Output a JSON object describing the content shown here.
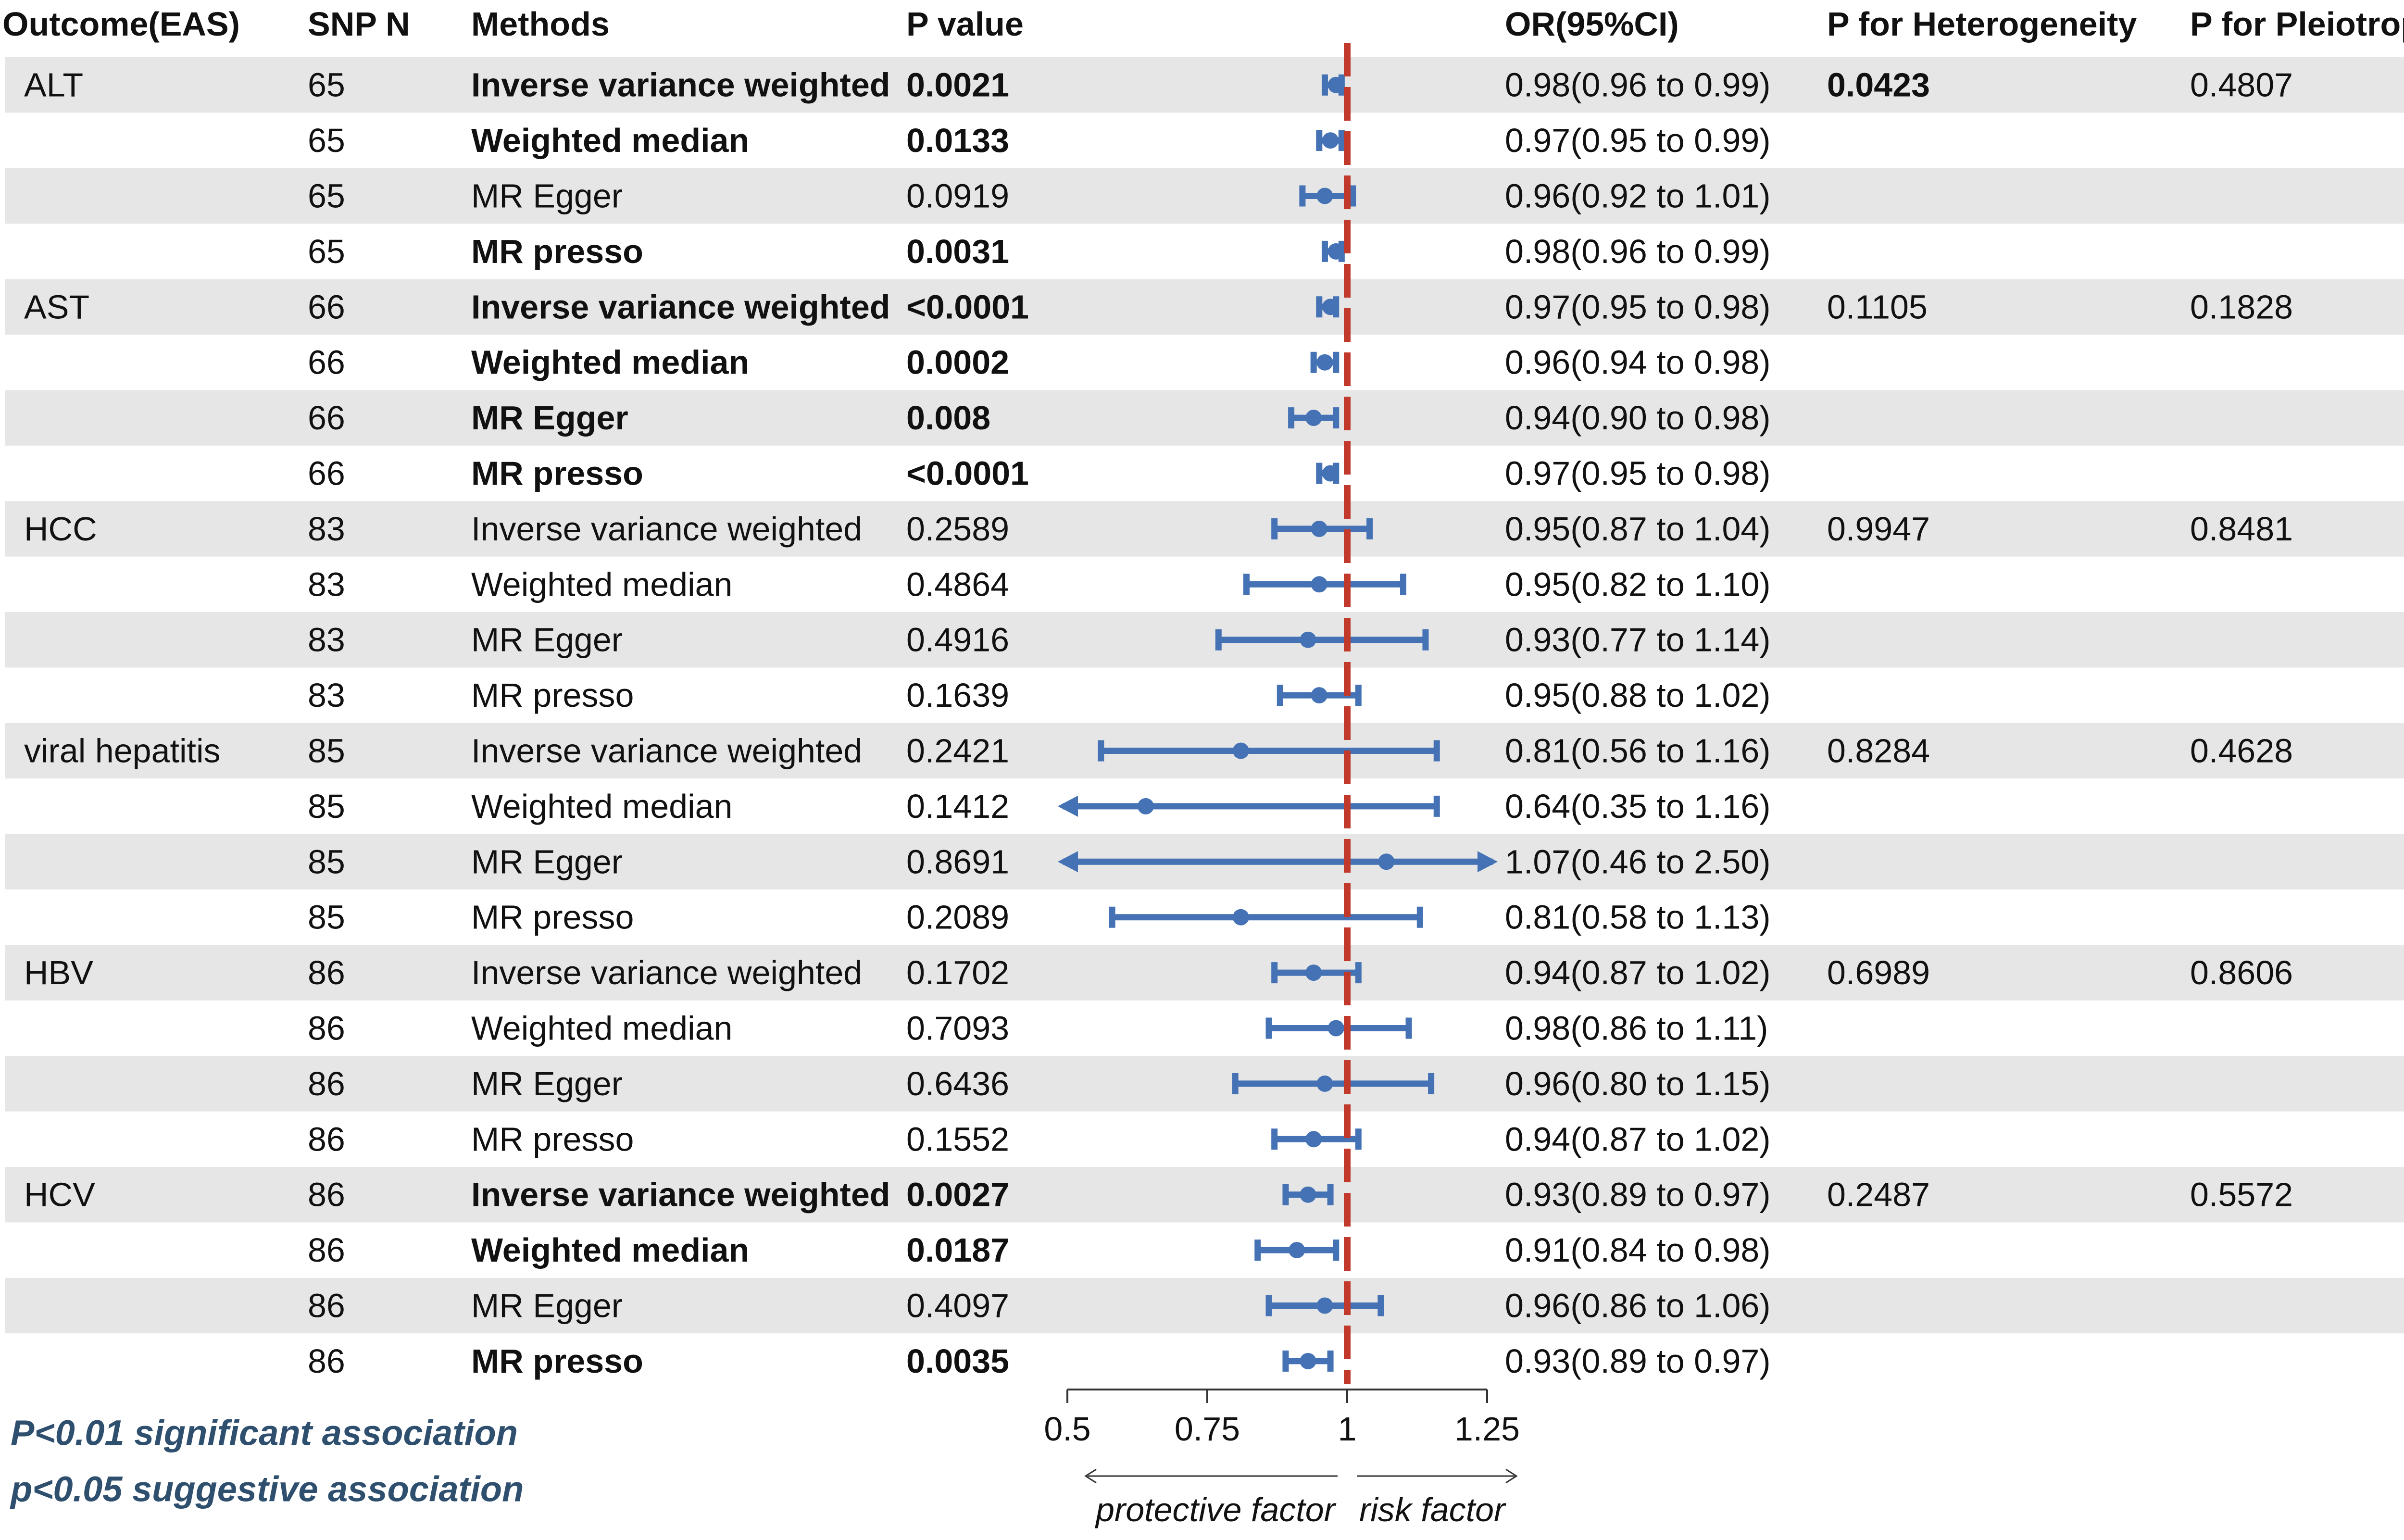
{
  "headers": {
    "outcome": "Outcome(EAS)",
    "snp": "SNP N",
    "methods": "Methods",
    "pvalue": "P value",
    "or": "OR(95%CI)",
    "het": "P for Heterogeneity",
    "pleio": "P for Pleiotropy"
  },
  "colors": {
    "band": "#e6e6e6",
    "marker": "#4472b4",
    "null_line": "#c0392b",
    "note": "#2f4f6f"
  },
  "rows": [
    {
      "outcome": "ALT",
      "snp": "65",
      "method": "Inverse variance weighted",
      "p": "0.0021",
      "or_text": "0.98(0.96 to 0.99)",
      "het": "0.0423",
      "pleio": "0.4807",
      "bold": true,
      "het_bold": true
    },
    {
      "outcome": "",
      "snp": "65",
      "method": "Weighted median",
      "p": "0.0133",
      "or_text": "0.97(0.95 to 0.99)",
      "het": "",
      "pleio": "",
      "bold": true
    },
    {
      "outcome": "",
      "snp": "65",
      "method": "MR Egger",
      "p": "0.0919",
      "or_text": "0.96(0.92 to 1.01)",
      "het": "",
      "pleio": "",
      "bold": false
    },
    {
      "outcome": "",
      "snp": "65",
      "method": "MR presso",
      "p": "0.0031",
      "or_text": "0.98(0.96 to 0.99)",
      "het": "",
      "pleio": "",
      "bold": true
    },
    {
      "outcome": "AST",
      "snp": "66",
      "method": "Inverse variance weighted",
      "p": "<0.0001",
      "or_text": "0.97(0.95 to 0.98)",
      "het": "0.1105",
      "pleio": "0.1828",
      "bold": true
    },
    {
      "outcome": "",
      "snp": "66",
      "method": "Weighted median",
      "p": "0.0002",
      "or_text": "0.96(0.94 to 0.98)",
      "het": "",
      "pleio": "",
      "bold": true
    },
    {
      "outcome": "",
      "snp": "66",
      "method": "MR Egger",
      "p": "0.008",
      "or_text": "0.94(0.90 to 0.98)",
      "het": "",
      "pleio": "",
      "bold": true
    },
    {
      "outcome": "",
      "snp": "66",
      "method": "MR presso",
      "p": "<0.0001",
      "or_text": "0.97(0.95 to 0.98)",
      "het": "",
      "pleio": "",
      "bold": true
    },
    {
      "outcome": "HCC",
      "snp": "83",
      "method": "Inverse variance weighted",
      "p": "0.2589",
      "or_text": "0.95(0.87 to 1.04)",
      "het": "0.9947",
      "pleio": "0.8481",
      "bold": false
    },
    {
      "outcome": "",
      "snp": "83",
      "method": "Weighted median",
      "p": "0.4864",
      "or_text": "0.95(0.82 to 1.10)",
      "het": "",
      "pleio": "",
      "bold": false
    },
    {
      "outcome": "",
      "snp": "83",
      "method": "MR Egger",
      "p": "0.4916",
      "or_text": "0.93(0.77 to 1.14)",
      "het": "",
      "pleio": "",
      "bold": false
    },
    {
      "outcome": "",
      "snp": "83",
      "method": "MR presso",
      "p": "0.1639",
      "or_text": "0.95(0.88 to 1.02)",
      "het": "",
      "pleio": "",
      "bold": false
    },
    {
      "outcome": "viral hepatitis",
      "snp": "85",
      "method": "Inverse variance weighted",
      "p": "0.2421",
      "or_text": "0.81(0.56 to 1.16)",
      "het": "0.8284",
      "pleio": "0.4628",
      "bold": false
    },
    {
      "outcome": "",
      "snp": "85",
      "method": "Weighted median",
      "p": "0.1412",
      "or_text": "0.64(0.35 to 1.16)",
      "het": "",
      "pleio": "",
      "bold": false
    },
    {
      "outcome": "",
      "snp": "85",
      "method": "MR Egger",
      "p": "0.8691",
      "or_text": "1.07(0.46 to 2.50)",
      "het": "",
      "pleio": "",
      "bold": false
    },
    {
      "outcome": "",
      "snp": "85",
      "method": "MR presso",
      "p": "0.2089",
      "or_text": "0.81(0.58 to 1.13)",
      "het": "",
      "pleio": "",
      "bold": false
    },
    {
      "outcome": "HBV",
      "snp": "86",
      "method": "Inverse variance weighted",
      "p": "0.1702",
      "or_text": "0.94(0.87 to 1.02)",
      "het": "0.6989",
      "pleio": "0.8606",
      "bold": false
    },
    {
      "outcome": "",
      "snp": "86",
      "method": "Weighted median",
      "p": "0.7093",
      "or_text": "0.98(0.86 to 1.11)",
      "het": "",
      "pleio": "",
      "bold": false
    },
    {
      "outcome": "",
      "snp": "86",
      "method": "MR Egger",
      "p": "0.6436",
      "or_text": "0.96(0.80 to 1.15)",
      "het": "",
      "pleio": "",
      "bold": false
    },
    {
      "outcome": "",
      "snp": "86",
      "method": "MR presso",
      "p": "0.1552",
      "or_text": "0.94(0.87 to 1.02)",
      "het": "",
      "pleio": "",
      "bold": false
    },
    {
      "outcome": "HCV",
      "snp": "86",
      "method": "Inverse variance weighted",
      "p": "0.0027",
      "or_text": "0.93(0.89 to 0.97)",
      "het": "0.2487",
      "pleio": "0.5572",
      "bold": true
    },
    {
      "outcome": "",
      "snp": "86",
      "method": "Weighted median",
      "p": "0.0187",
      "or_text": "0.91(0.84 to 0.98)",
      "het": "",
      "pleio": "",
      "bold": true
    },
    {
      "outcome": "",
      "snp": "86",
      "method": "MR Egger",
      "p": "0.4097",
      "or_text": "0.96(0.86 to 1.06)",
      "het": "",
      "pleio": "",
      "bold": false
    },
    {
      "outcome": "",
      "snp": "86",
      "method": "MR presso",
      "p": "0.0035",
      "or_text": "0.93(0.89 to 0.97)",
      "het": "",
      "pleio": "",
      "bold": true
    }
  ],
  "chart_data": {
    "type": "forest",
    "x": {
      "lim": [
        0.5,
        1.25
      ],
      "ticks": [
        0.5,
        0.75,
        1,
        1.25
      ],
      "tick_labels": [
        "0.5",
        "0.75",
        "1",
        "1.25"
      ],
      "reference": 1
    },
    "points": [
      {
        "or": 0.98,
        "lo": 0.96,
        "hi": 0.99
      },
      {
        "or": 0.97,
        "lo": 0.95,
        "hi": 0.99
      },
      {
        "or": 0.96,
        "lo": 0.92,
        "hi": 1.01
      },
      {
        "or": 0.98,
        "lo": 0.96,
        "hi": 0.99
      },
      {
        "or": 0.97,
        "lo": 0.95,
        "hi": 0.98
      },
      {
        "or": 0.96,
        "lo": 0.94,
        "hi": 0.98
      },
      {
        "or": 0.94,
        "lo": 0.9,
        "hi": 0.98
      },
      {
        "or": 0.97,
        "lo": 0.95,
        "hi": 0.98
      },
      {
        "or": 0.95,
        "lo": 0.87,
        "hi": 1.04
      },
      {
        "or": 0.95,
        "lo": 0.82,
        "hi": 1.1
      },
      {
        "or": 0.93,
        "lo": 0.77,
        "hi": 1.14
      },
      {
        "or": 0.95,
        "lo": 0.88,
        "hi": 1.02
      },
      {
        "or": 0.81,
        "lo": 0.56,
        "hi": 1.16
      },
      {
        "or": 0.64,
        "lo": 0.35,
        "hi": 1.16
      },
      {
        "or": 1.07,
        "lo": 0.46,
        "hi": 2.5
      },
      {
        "or": 0.81,
        "lo": 0.58,
        "hi": 1.13
      },
      {
        "or": 0.94,
        "lo": 0.87,
        "hi": 1.02
      },
      {
        "or": 0.98,
        "lo": 0.86,
        "hi": 1.11
      },
      {
        "or": 0.96,
        "lo": 0.8,
        "hi": 1.15
      },
      {
        "or": 0.94,
        "lo": 0.87,
        "hi": 1.02
      },
      {
        "or": 0.93,
        "lo": 0.89,
        "hi": 0.97
      },
      {
        "or": 0.91,
        "lo": 0.84,
        "hi": 0.98
      },
      {
        "or": 0.96,
        "lo": 0.86,
        "hi": 1.06
      },
      {
        "or": 0.93,
        "lo": 0.89,
        "hi": 0.97
      }
    ],
    "direction_left": "protective factor",
    "direction_right": "risk factor"
  },
  "notes": [
    "P<0.01 significant association",
    "p<0.05 suggestive association"
  ]
}
